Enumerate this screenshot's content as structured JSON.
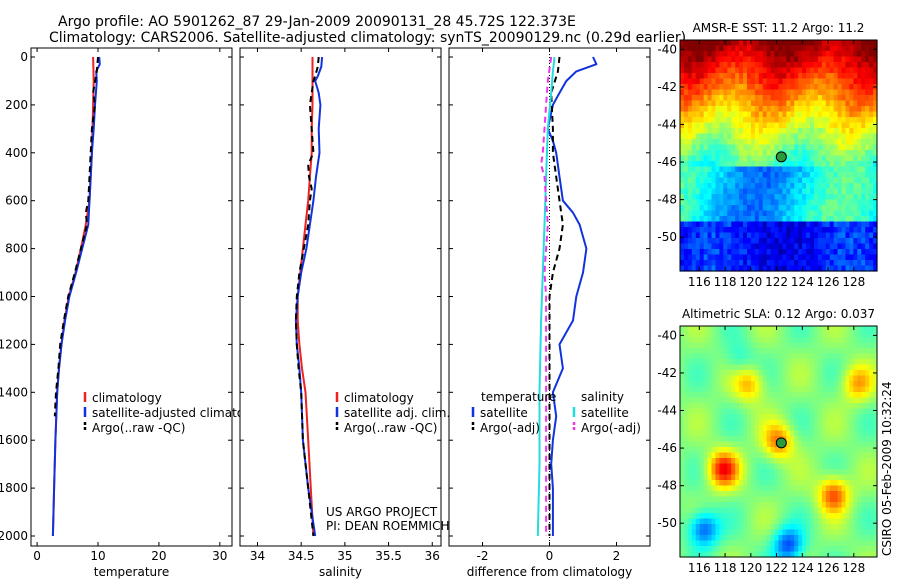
{
  "header": {
    "line1": "Argo profile: AO 5901262_87 29-Jan-2009 20090131_28 45.72S 122.373E",
    "line2": "Climatology: CARS2006. Satellite-adjusted climatology: synTS_20090129.nc (0.29d earlier)"
  },
  "footer": {
    "project_line1": "US ARGO PROJECT",
    "project_line2": "PI: DEAN ROEMMICH",
    "credit": "CSIRO 05-Feb-2009 10:32:24"
  },
  "colors": {
    "climatology": "#ee2222",
    "satellite": "#1133dd",
    "argo": "#000000",
    "sal_satellite": "#22dddd",
    "sal_argo": "#ee33ee",
    "marker_sst": "#2a9a3a",
    "marker_sla": "#2a9a3a"
  },
  "chart_data": [
    {
      "type": "line",
      "name": "temperature",
      "xlabel": "temperature",
      "xlim": [
        -1,
        32
      ],
      "ylim": [
        0,
        2050
      ],
      "xticks": [
        0,
        10,
        20,
        30
      ],
      "yticks": [
        0,
        200,
        400,
        600,
        800,
        1000,
        1200,
        1400,
        1600,
        1800,
        2000
      ],
      "y_reversed": true,
      "legend": [
        "climatology",
        "satellite-adjusted climatology",
        "Argo(..raw -QC)"
      ],
      "series": [
        {
          "name": "climatology",
          "color_key": "climatology",
          "dashed": false,
          "points": [
            [
              9.2,
              0
            ],
            [
              9.3,
              100
            ],
            [
              9.2,
              200
            ],
            [
              9.0,
              400
            ],
            [
              8.8,
              500
            ],
            [
              8.6,
              600
            ],
            [
              8.0,
              700
            ],
            [
              7.2,
              800
            ],
            [
              6.3,
              900
            ],
            [
              5.2,
              1000
            ],
            [
              4.5,
              1100
            ],
            [
              4.0,
              1200
            ],
            [
              3.6,
              1300
            ],
            [
              3.3,
              1400
            ],
            [
              3.0,
              1600
            ],
            [
              2.8,
              1800
            ],
            [
              2.6,
              2000
            ]
          ]
        },
        {
          "name": "satellite-adjusted climatology",
          "color_key": "satellite",
          "dashed": false,
          "points": [
            [
              10.2,
              0
            ],
            [
              10.3,
              30
            ],
            [
              9.7,
              60
            ],
            [
              9.8,
              100
            ],
            [
              9.5,
              200
            ],
            [
              9.3,
              300
            ],
            [
              9.0,
              400
            ],
            [
              8.8,
              500
            ],
            [
              8.6,
              600
            ],
            [
              8.4,
              700
            ],
            [
              7.4,
              800
            ],
            [
              6.4,
              900
            ],
            [
              5.3,
              1000
            ],
            [
              4.6,
              1100
            ],
            [
              4.0,
              1200
            ],
            [
              3.6,
              1300
            ],
            [
              3.3,
              1400
            ],
            [
              3.0,
              1600
            ],
            [
              2.8,
              1800
            ],
            [
              2.6,
              2000
            ]
          ]
        },
        {
          "name": "Argo(..raw -QC)",
          "color_key": "argo",
          "dashed": true,
          "points": [
            [
              10.0,
              0
            ],
            [
              9.8,
              60
            ],
            [
              9.2,
              150
            ],
            [
              9.5,
              200
            ],
            [
              9.0,
              300
            ],
            [
              8.8,
              400
            ],
            [
              8.6,
              500
            ],
            [
              8.4,
              600
            ],
            [
              8.0,
              650
            ],
            [
              8.2,
              700
            ],
            [
              7.2,
              800
            ],
            [
              6.2,
              900
            ],
            [
              5.1,
              1000
            ],
            [
              4.4,
              1100
            ],
            [
              3.8,
              1200
            ],
            [
              3.5,
              1300
            ],
            [
              3.1,
              1400
            ],
            [
              2.9,
              1500
            ]
          ]
        }
      ]
    },
    {
      "type": "line",
      "name": "salinity",
      "xlabel": "salinity",
      "xlim": [
        33.8,
        36.1
      ],
      "ylim": [
        0,
        2050
      ],
      "xticks": [
        34,
        34.5,
        35,
        35.5,
        36
      ],
      "xticklabels": [
        "34",
        "34.5",
        "35",
        "35.5",
        "36"
      ],
      "y_reversed": true,
      "legend": [
        "climatology",
        "satellite adj. clim.",
        "Argo(..raw -QC)"
      ],
      "series": [
        {
          "name": "climatology",
          "color_key": "climatology",
          "dashed": false,
          "points": [
            [
              34.63,
              0
            ],
            [
              34.63,
              100
            ],
            [
              34.63,
              200
            ],
            [
              34.62,
              300
            ],
            [
              34.62,
              400
            ],
            [
              34.6,
              500
            ],
            [
              34.58,
              600
            ],
            [
              34.55,
              700
            ],
            [
              34.52,
              800
            ],
            [
              34.49,
              900
            ],
            [
              34.46,
              1000
            ],
            [
              34.46,
              1100
            ],
            [
              34.48,
              1200
            ],
            [
              34.51,
              1300
            ],
            [
              34.55,
              1400
            ],
            [
              34.58,
              1600
            ],
            [
              34.61,
              1800
            ],
            [
              34.64,
              2000
            ]
          ]
        },
        {
          "name": "satellite adj. clim.",
          "color_key": "satellite",
          "dashed": false,
          "points": [
            [
              34.74,
              0
            ],
            [
              34.73,
              40
            ],
            [
              34.69,
              80
            ],
            [
              34.66,
              100
            ],
            [
              34.7,
              150
            ],
            [
              34.72,
              200
            ],
            [
              34.7,
              300
            ],
            [
              34.71,
              400
            ],
            [
              34.67,
              500
            ],
            [
              34.64,
              600
            ],
            [
              34.6,
              700
            ],
            [
              34.56,
              800
            ],
            [
              34.5,
              900
            ],
            [
              34.46,
              1000
            ],
            [
              34.44,
              1100
            ],
            [
              34.45,
              1200
            ],
            [
              34.48,
              1300
            ],
            [
              34.5,
              1400
            ],
            [
              34.52,
              1600
            ],
            [
              34.58,
              1800
            ],
            [
              34.66,
              2000
            ]
          ]
        },
        {
          "name": "Argo(..raw -QC)",
          "color_key": "argo",
          "dashed": true,
          "points": [
            [
              34.7,
              0
            ],
            [
              34.69,
              40
            ],
            [
              34.66,
              80
            ],
            [
              34.64,
              100
            ],
            [
              34.62,
              150
            ],
            [
              34.6,
              200
            ],
            [
              34.62,
              300
            ],
            [
              34.64,
              400
            ],
            [
              34.58,
              450
            ],
            [
              34.59,
              500
            ],
            [
              34.62,
              550
            ],
            [
              34.6,
              600
            ],
            [
              34.58,
              700
            ],
            [
              34.53,
              800
            ],
            [
              34.48,
              900
            ],
            [
              34.45,
              1000
            ],
            [
              34.44,
              1100
            ],
            [
              34.45,
              1200
            ],
            [
              34.47,
              1300
            ],
            [
              34.5,
              1400
            ],
            [
              34.52,
              1600
            ],
            [
              34.58,
              1800
            ],
            [
              34.64,
              2000
            ]
          ]
        }
      ]
    },
    {
      "type": "line",
      "name": "difference",
      "xlabel": "difference from climatology",
      "xlim": [
        -3.0,
        3.0
      ],
      "ylim": [
        0,
        2050
      ],
      "xticks": [
        -2,
        0,
        2
      ],
      "y_reversed": true,
      "legend_headers": [
        "temperature",
        "salinity"
      ],
      "legend_temperature": [
        "satellite",
        "Argo(-adj)"
      ],
      "legend_salinity": [
        "satellite",
        "Argo(-adj)"
      ],
      "series": [
        {
          "name": "temperature satellite",
          "color_key": "satellite",
          "dashed": false,
          "points": [
            [
              1.3,
              0
            ],
            [
              1.4,
              30
            ],
            [
              0.8,
              60
            ],
            [
              0.5,
              100
            ],
            [
              0.3,
              150
            ],
            [
              0.1,
              200
            ],
            [
              -0.05,
              300
            ],
            [
              0.1,
              350
            ],
            [
              0.2,
              400
            ],
            [
              0.3,
              500
            ],
            [
              0.4,
              600
            ],
            [
              0.7,
              650
            ],
            [
              0.9,
              700
            ],
            [
              1.1,
              800
            ],
            [
              1.0,
              900
            ],
            [
              0.8,
              1000
            ],
            [
              0.7,
              1100
            ],
            [
              0.5,
              1150
            ],
            [
              0.3,
              1200
            ],
            [
              0.4,
              1300
            ],
            [
              0.1,
              1400
            ],
            [
              0.2,
              1500
            ],
            [
              0.1,
              1600
            ],
            [
              0.05,
              1700
            ],
            [
              0.1,
              1800
            ],
            [
              0.1,
              2000
            ]
          ]
        },
        {
          "name": "temperature Argo(-adj)",
          "color_key": "argo",
          "dashed": true,
          "points": [
            [
              0.3,
              0
            ],
            [
              0.25,
              60
            ],
            [
              0.05,
              150
            ],
            [
              0.1,
              300
            ],
            [
              0.1,
              400
            ],
            [
              0.2,
              500
            ],
            [
              0.3,
              600
            ],
            [
              0.4,
              700
            ],
            [
              0.3,
              800
            ],
            [
              0.1,
              900
            ],
            [
              0.0,
              1000
            ],
            [
              0.0,
              1200
            ],
            [
              0.0,
              1400
            ],
            [
              0.0,
              1600
            ],
            [
              0.0,
              2000
            ]
          ]
        },
        {
          "name": "salinity satellite",
          "color_key": "sal_satellite",
          "dashed": false,
          "points": [
            [
              0.15,
              0
            ],
            [
              0.1,
              60
            ],
            [
              0.05,
              150
            ],
            [
              -0.05,
              300
            ],
            [
              -0.1,
              500
            ],
            [
              -0.15,
              700
            ],
            [
              -0.2,
              900
            ],
            [
              -0.25,
              1100
            ],
            [
              -0.3,
              1400
            ],
            [
              -0.3,
              1700
            ],
            [
              -0.35,
              2000
            ]
          ]
        },
        {
          "name": "salinity Argo(-adj)",
          "color_key": "sal_argo",
          "dashed": true,
          "points": [
            [
              0.05,
              0
            ],
            [
              -0.05,
              100
            ],
            [
              -0.1,
              200
            ],
            [
              -0.15,
              300
            ],
            [
              -0.2,
              400
            ],
            [
              -0.25,
              450
            ],
            [
              -0.15,
              500
            ],
            [
              -0.1,
              600
            ],
            [
              -0.05,
              700
            ],
            [
              -0.1,
              800
            ],
            [
              -0.15,
              900
            ],
            [
              -0.1,
              1000
            ],
            [
              -0.1,
              1200
            ],
            [
              -0.1,
              1400
            ],
            [
              -0.1,
              1600
            ],
            [
              -0.1,
              2000
            ]
          ]
        }
      ]
    },
    {
      "type": "heatmap",
      "name": "sst",
      "title": "AMSR-E SST: 11.2  Argo: 11.2",
      "xticks": [
        116,
        118,
        120,
        122,
        124,
        126,
        128
      ],
      "yticks": [
        -40,
        -42,
        -44,
        -46,
        -48,
        -50
      ],
      "xlim": [
        114.5,
        129.8
      ],
      "ylim": [
        -51.8,
        -39.5
      ],
      "marker": {
        "lon": 122.37,
        "lat": -45.72
      },
      "note": "SST field: cold (blue) in south ~-50, warm (red) in north ~-40"
    },
    {
      "type": "heatmap",
      "name": "sla",
      "title": "Altimetric SLA: 0.12  Argo: 0.037",
      "xticks": [
        116,
        118,
        120,
        122,
        124,
        126,
        128
      ],
      "yticks": [
        -40,
        -42,
        -44,
        -46,
        -48,
        -50
      ],
      "xlim": [
        114.5,
        129.8
      ],
      "ylim": [
        -51.8,
        -39.5
      ],
      "marker": {
        "lon": 122.37,
        "lat": -45.72
      },
      "note": "Sea level anomaly field, mostly green with a few warm/cool blobs"
    }
  ]
}
